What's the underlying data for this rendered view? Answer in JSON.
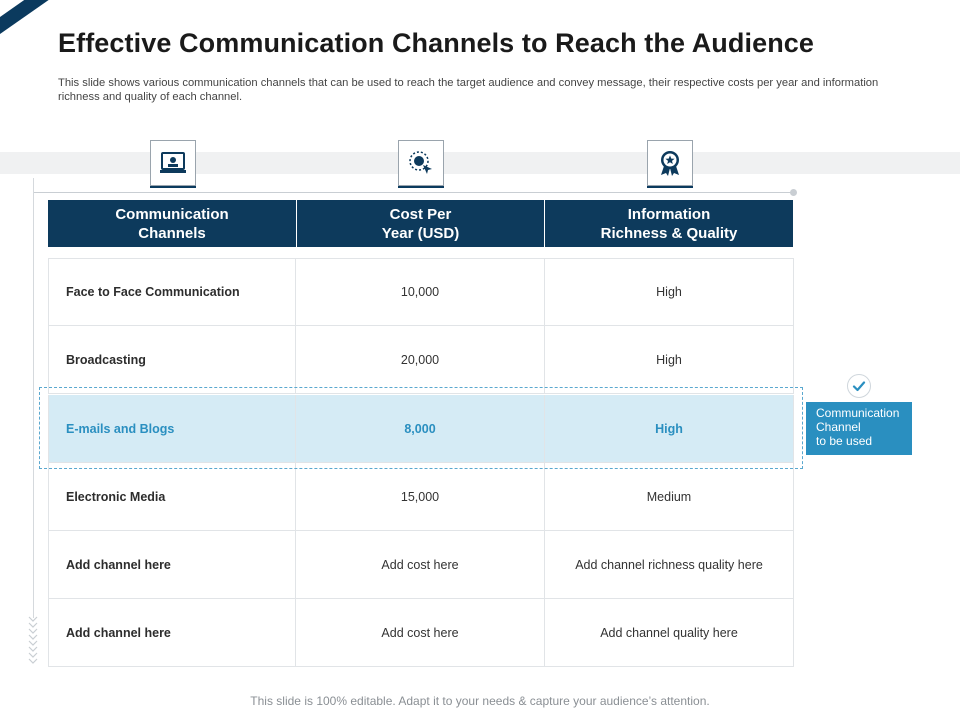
{
  "title": "Effective Communication Channels to Reach the Audience",
  "subtitle": "This slide shows various communication channels that can be used to reach the target audience and convey message, their respective costs per year and information richness and quality of each channel.",
  "icons": [
    "video-call-icon",
    "target-click-icon",
    "award-badge-icon"
  ],
  "table": {
    "headers": [
      "Communication\nChannels",
      "Cost Per\nYear (USD)",
      "Information\nRichness & Quality"
    ],
    "rows": [
      {
        "channel": "Face to Face Communication",
        "cost": "10,000",
        "quality": "High"
      },
      {
        "channel": "Broadcasting",
        "cost": "20,000",
        "quality": "High"
      },
      {
        "channel": "E-mails and Blogs",
        "cost": "8,000",
        "quality": "High"
      },
      {
        "channel": "Electronic Media",
        "cost": "15,000",
        "quality": "Medium"
      },
      {
        "channel": "Add channel here",
        "cost": "Add cost here",
        "quality": "Add channel richness quality here"
      },
      {
        "channel": "Add channel here",
        "cost": "Add cost here",
        "quality": "Add channel quality here"
      }
    ],
    "highlighted_row": 2
  },
  "callout": "Communication\nChannel\nto be used",
  "colors": {
    "header": "#0d3a5c",
    "highlight_bg": "#d5ebf5",
    "accent": "#2a8fc0"
  },
  "footer": "This slide is 100% editable. Adapt it to your needs & capture your audience’s attention."
}
